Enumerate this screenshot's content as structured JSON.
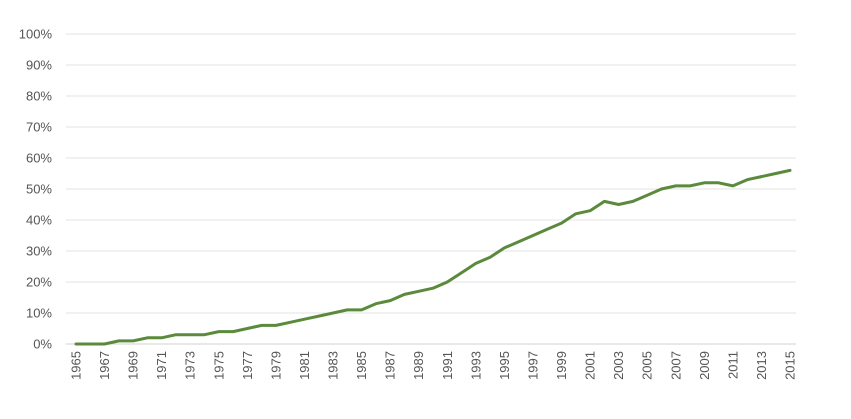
{
  "chart_data": {
    "type": "line",
    "title": "",
    "xlabel": "",
    "ylabel": "",
    "ylim": [
      0,
      100
    ],
    "y_ticks": [
      "0%",
      "10%",
      "20%",
      "30%",
      "40%",
      "50%",
      "60%",
      "70%",
      "80%",
      "90%",
      "100%"
    ],
    "x_ticks": [
      "1965",
      "1967",
      "1969",
      "1971",
      "1973",
      "1975",
      "1977",
      "1979",
      "1981",
      "1983",
      "1985",
      "1987",
      "1989",
      "1991",
      "1993",
      "1995",
      "1997",
      "1999",
      "2001",
      "2003",
      "2005",
      "2007",
      "2009",
      "2011",
      "2013",
      "2015"
    ],
    "grid": true,
    "legend": "none",
    "series": [
      {
        "color": "#5b8a3c",
        "x": [
          1965,
          1966,
          1967,
          1968,
          1969,
          1970,
          1971,
          1972,
          1973,
          1974,
          1975,
          1976,
          1977,
          1978,
          1979,
          1980,
          1981,
          1982,
          1983,
          1984,
          1985,
          1986,
          1987,
          1988,
          1989,
          1990,
          1991,
          1992,
          1993,
          1994,
          1995,
          1996,
          1997,
          1998,
          1999,
          2000,
          2001,
          2002,
          2003,
          2004,
          2005,
          2006,
          2007,
          2008,
          2009,
          2010,
          2011,
          2012,
          2013,
          2014,
          2015
        ],
        "values": [
          0,
          0,
          0,
          1,
          1,
          2,
          2,
          3,
          3,
          3,
          4,
          4,
          5,
          6,
          6,
          7,
          8,
          9,
          10,
          11,
          11,
          13,
          14,
          16,
          17,
          18,
          20,
          23,
          26,
          28,
          31,
          33,
          35,
          37,
          39,
          42,
          43,
          46,
          45,
          46,
          48,
          50,
          51,
          51,
          52,
          52,
          51,
          53,
          54,
          55,
          56
        ]
      }
    ]
  }
}
